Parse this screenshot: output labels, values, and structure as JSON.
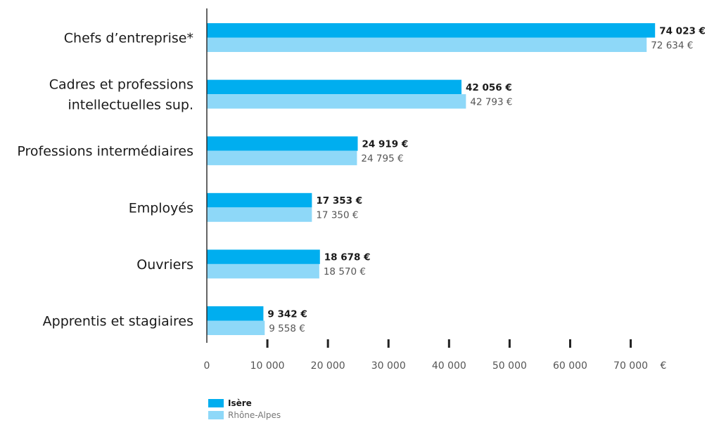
{
  "chart_data": {
    "type": "bar",
    "orientation": "horizontal",
    "categories": [
      "Chefs d’entreprise*",
      "Cadres et professions intellectuelles sup.",
      "Professions intermédiaires",
      "Employés",
      "Ouvriers",
      "Apprentis et stagiaires"
    ],
    "category_lines": [
      [
        "Chefs d’entreprise*"
      ],
      [
        "Cadres et professions",
        "intellectuelles sup."
      ],
      [
        "Professions intermédiaires"
      ],
      [
        "Employés"
      ],
      [
        "Ouvriers"
      ],
      [
        "Apprentis et stagiaires"
      ]
    ],
    "series": [
      {
        "name": "Isère",
        "color": "#00aeef",
        "values": [
          74023,
          42056,
          24919,
          17353,
          18678,
          9342
        ],
        "labels": [
          "74 023 €",
          "42 056 €",
          "24 919 €",
          "17 353 €",
          "18 678 €",
          "9 342 €"
        ]
      },
      {
        "name": "Rhône-Alpes",
        "color": "#8ed8f8",
        "values": [
          72634,
          42793,
          24795,
          17350,
          18570,
          9558
        ],
        "labels": [
          "72 634 €",
          "42 793 €",
          "24 795 €",
          "17 350 €",
          "18 570 €",
          "9 558 €"
        ]
      }
    ],
    "xlim": [
      0,
      76000
    ],
    "x_ticks": [
      0,
      10000,
      20000,
      30000,
      40000,
      50000,
      60000,
      70000
    ],
    "x_tick_labels": [
      "0",
      "10 000",
      "20 000",
      "30 000",
      "40 000",
      "50 000",
      "60 000",
      "70 000"
    ],
    "x_unit": "€",
    "legend_position": "bottom-left",
    "grid": false
  }
}
